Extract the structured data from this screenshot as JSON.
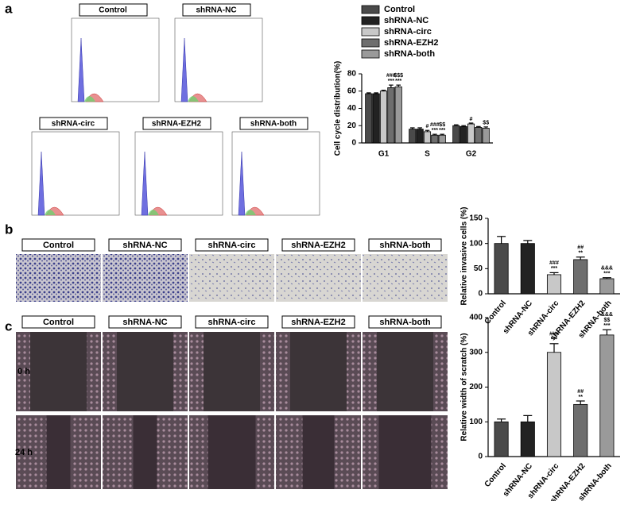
{
  "panel_labels": [
    "a",
    "b",
    "c"
  ],
  "flow_labels": [
    "Control",
    "shRNA-NC",
    "shRNA-circ",
    "shRNA-EZH2",
    "shRNA-both"
  ],
  "invasion_labels": [
    "Control",
    "shRNA-NC",
    "shRNA-circ",
    "shRNA-EZH2",
    "shRNA-both"
  ],
  "scratch_labels": [
    "Control",
    "shRNA-NC",
    "shRNA-circ",
    "shRNA-EZH2",
    "shRNA-both"
  ],
  "time_labels": [
    "0 h",
    "24 h"
  ],
  "chart_data": [
    {
      "type": "bar",
      "y_label": "Cell cycle distribution(%)",
      "categories": [
        "G1",
        "S",
        "G2"
      ],
      "ylim": [
        0,
        80
      ],
      "yticks": [
        0,
        20,
        40,
        60,
        80
      ],
      "legend": "top-left",
      "series": [
        {
          "name": "Control",
          "color": "#4a4a4a",
          "values": [
            57,
            16,
            20
          ],
          "errors": [
            1,
            1.5,
            1
          ],
          "labels": [
            null,
            null,
            null
          ]
        },
        {
          "name": "shRNA-NC",
          "color": "#222222",
          "values": [
            57,
            16,
            19
          ],
          "errors": [
            1,
            1.5,
            1
          ],
          "labels": [
            null,
            null,
            null
          ]
        },
        {
          "name": "shRNA-circ",
          "color": "#c8c8c8",
          "values": [
            60,
            13,
            22
          ],
          "errors": [
            1,
            1.5,
            1
          ],
          "labels": [
            null,
            [
              "#"
            ],
            [
              "#"
            ]
          ]
        },
        {
          "name": "shRNA-EZH2",
          "color": "#6e6e6e",
          "values": [
            64,
            9,
            18
          ],
          "errors": [
            3,
            1,
            1
          ],
          "labels": [
            [
              "###",
              "***"
            ],
            [
              "###",
              "***"
            ],
            null
          ]
        },
        {
          "name": "shRNA-both",
          "color": "#9a9a9a",
          "values": [
            65,
            9,
            17
          ],
          "errors": [
            2,
            1,
            1.5
          ],
          "labels": [
            [
              "$$$",
              "***"
            ],
            [
              "$$",
              "***"
            ],
            [
              "$$"
            ]
          ]
        }
      ]
    },
    {
      "type": "bar",
      "y_label": "Relative invasive cells (%)",
      "categories": [
        "Control",
        "shRNA-NC",
        "shRNA-circ",
        "shRNA-EZH2",
        "shRNA-both"
      ],
      "colors": [
        "#4a4a4a",
        "#222222",
        "#c8c8c8",
        "#6e6e6e",
        "#9a9a9a"
      ],
      "values": [
        100,
        100,
        38,
        68,
        30
      ],
      "errors": [
        14,
        6,
        4,
        5,
        2
      ],
      "labels": [
        null,
        null,
        [
          "###",
          "***"
        ],
        [
          "##",
          "**"
        ],
        [
          "&&&",
          "***"
        ]
      ],
      "ylim": [
        0,
        150
      ],
      "yticks": [
        0,
        50,
        100,
        150
      ]
    },
    {
      "type": "bar",
      "y_label": "Relative width of scratch (%)",
      "categories": [
        "Control",
        "shRNA-NC",
        "shRNA-circ",
        "shRNA-EZH2",
        "shRNA-both"
      ],
      "colors": [
        "#4a4a4a",
        "#222222",
        "#c8c8c8",
        "#6e6e6e",
        "#9a9a9a"
      ],
      "values": [
        100,
        100,
        300,
        150,
        350
      ],
      "errors": [
        8,
        18,
        25,
        10,
        15
      ],
      "labels": [
        null,
        null,
        [
          "###",
          "***"
        ],
        [
          "##",
          "**"
        ],
        [
          "&&&",
          "$$",
          "***"
        ]
      ],
      "ylim": [
        0,
        400
      ],
      "yticks": [
        0,
        100,
        200,
        300,
        400
      ]
    }
  ]
}
